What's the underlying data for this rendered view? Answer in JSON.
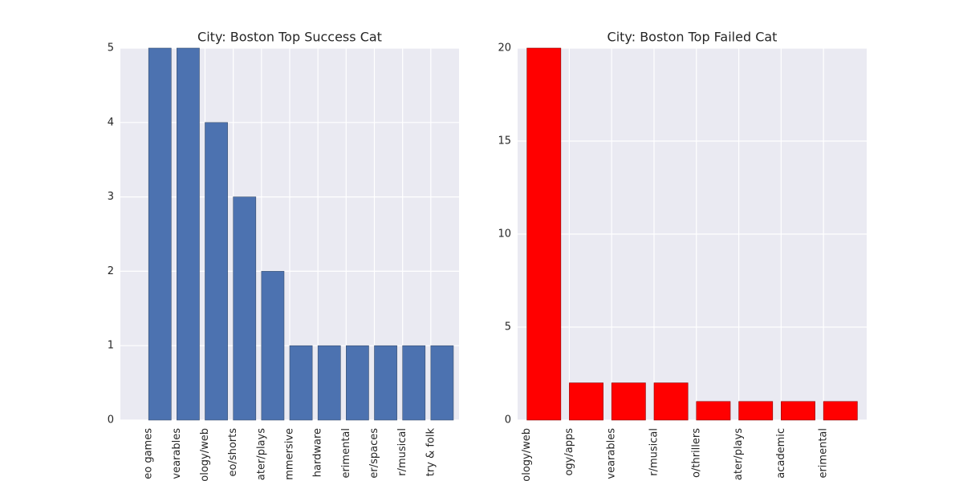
{
  "chart_data": [
    {
      "type": "bar",
      "title": "City: Boston Top Success Cat",
      "categories": [
        "eo games",
        "vearables",
        "ology/web",
        "eo/shorts",
        "ater/plays",
        "mmersive",
        "hardware",
        "erimental",
        "er/spaces",
        "r/musical",
        "try & folk"
      ],
      "values": [
        5,
        5,
        4,
        3,
        2,
        1,
        1,
        1,
        1,
        1,
        1
      ],
      "color": "#4c72b0",
      "ylim": [
        0,
        5
      ],
      "yticks": [
        0,
        1,
        2,
        3,
        4,
        5
      ],
      "grid": true
    },
    {
      "type": "bar",
      "title": "City: Boston Top Failed Cat",
      "categories": [
        "ology/web",
        "ogy/apps",
        "vearables",
        "r/musical",
        "o/thrillers",
        "ater/plays",
        "academic",
        "erimental"
      ],
      "values": [
        20,
        2,
        2,
        2,
        1,
        1,
        1,
        1
      ],
      "color": "#ff0000",
      "ylim": [
        0,
        20
      ],
      "yticks": [
        0,
        5,
        10,
        15,
        20
      ],
      "grid": true
    }
  ]
}
